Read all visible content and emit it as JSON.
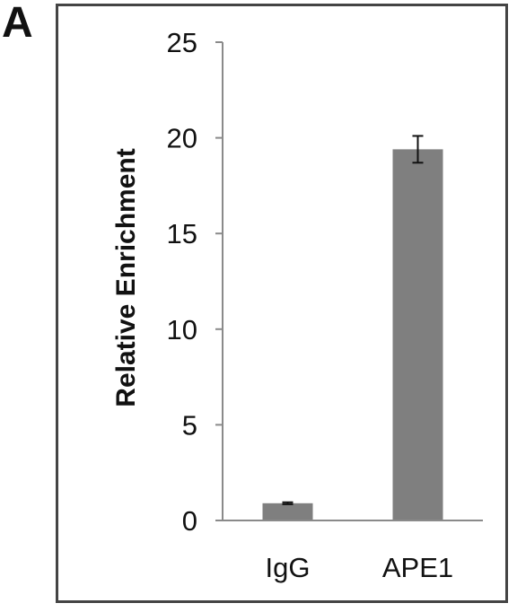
{
  "panel_label": "A",
  "chart_data": {
    "type": "bar",
    "title": "",
    "xlabel": "",
    "ylabel": "Relative Enrichment",
    "categories": [
      "IgG",
      "APE1"
    ],
    "values": [
      0.9,
      19.4
    ],
    "errors": [
      0.05,
      0.7
    ],
    "ylim": [
      0,
      25
    ],
    "yticks": [
      "0",
      "5",
      "10",
      "15",
      "20",
      "25"
    ],
    "grid": false,
    "legend": "none",
    "bar_color": "#7f7f7f"
  }
}
